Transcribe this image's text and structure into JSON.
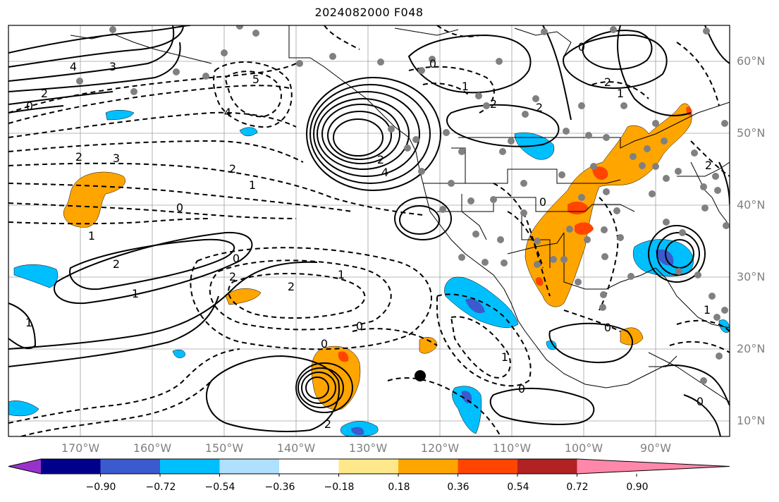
{
  "title": "2024082000 F048",
  "latitude_labels": [
    "60°N",
    "50°N",
    "40°N",
    "30°N",
    "20°N",
    "10°N"
  ],
  "longitude_labels": [
    "170°W",
    "160°W",
    "150°W",
    "140°W",
    "130°W",
    "120°W",
    "110°W",
    "100°W",
    "90°W"
  ],
  "colorbar": {
    "tick_labels": [
      "−0.90",
      "−0.72",
      "−0.54",
      "−0.36",
      "−0.18",
      "0.18",
      "0.36",
      "0.54",
      "0.72",
      "0.90"
    ],
    "colors": [
      "#9932cc",
      "#00008b",
      "#3a5bcd",
      "#00bfff",
      "#b0e0ff",
      "#ffffff",
      "#ffe88a",
      "#ffa500",
      "#ff4500",
      "#b22222",
      "#ff88aa"
    ]
  },
  "contour_labels": [
    "4",
    "3",
    "2",
    "0",
    "5",
    "4",
    "3",
    "2",
    "1",
    "0",
    "2",
    "1",
    "2",
    "0",
    "1",
    "2",
    "2",
    "1",
    "0",
    "4",
    "2",
    "0",
    "1",
    "2",
    "2",
    "0",
    "2",
    "1",
    "0",
    "2",
    "1",
    "0",
    "0",
    "2",
    "1",
    "0",
    "1",
    "0"
  ],
  "shading_colors": {
    "orange": "#ffa500",
    "red": "#ff4500",
    "blue": "#00bfff",
    "dark_blue": "#3a5bcd"
  }
}
